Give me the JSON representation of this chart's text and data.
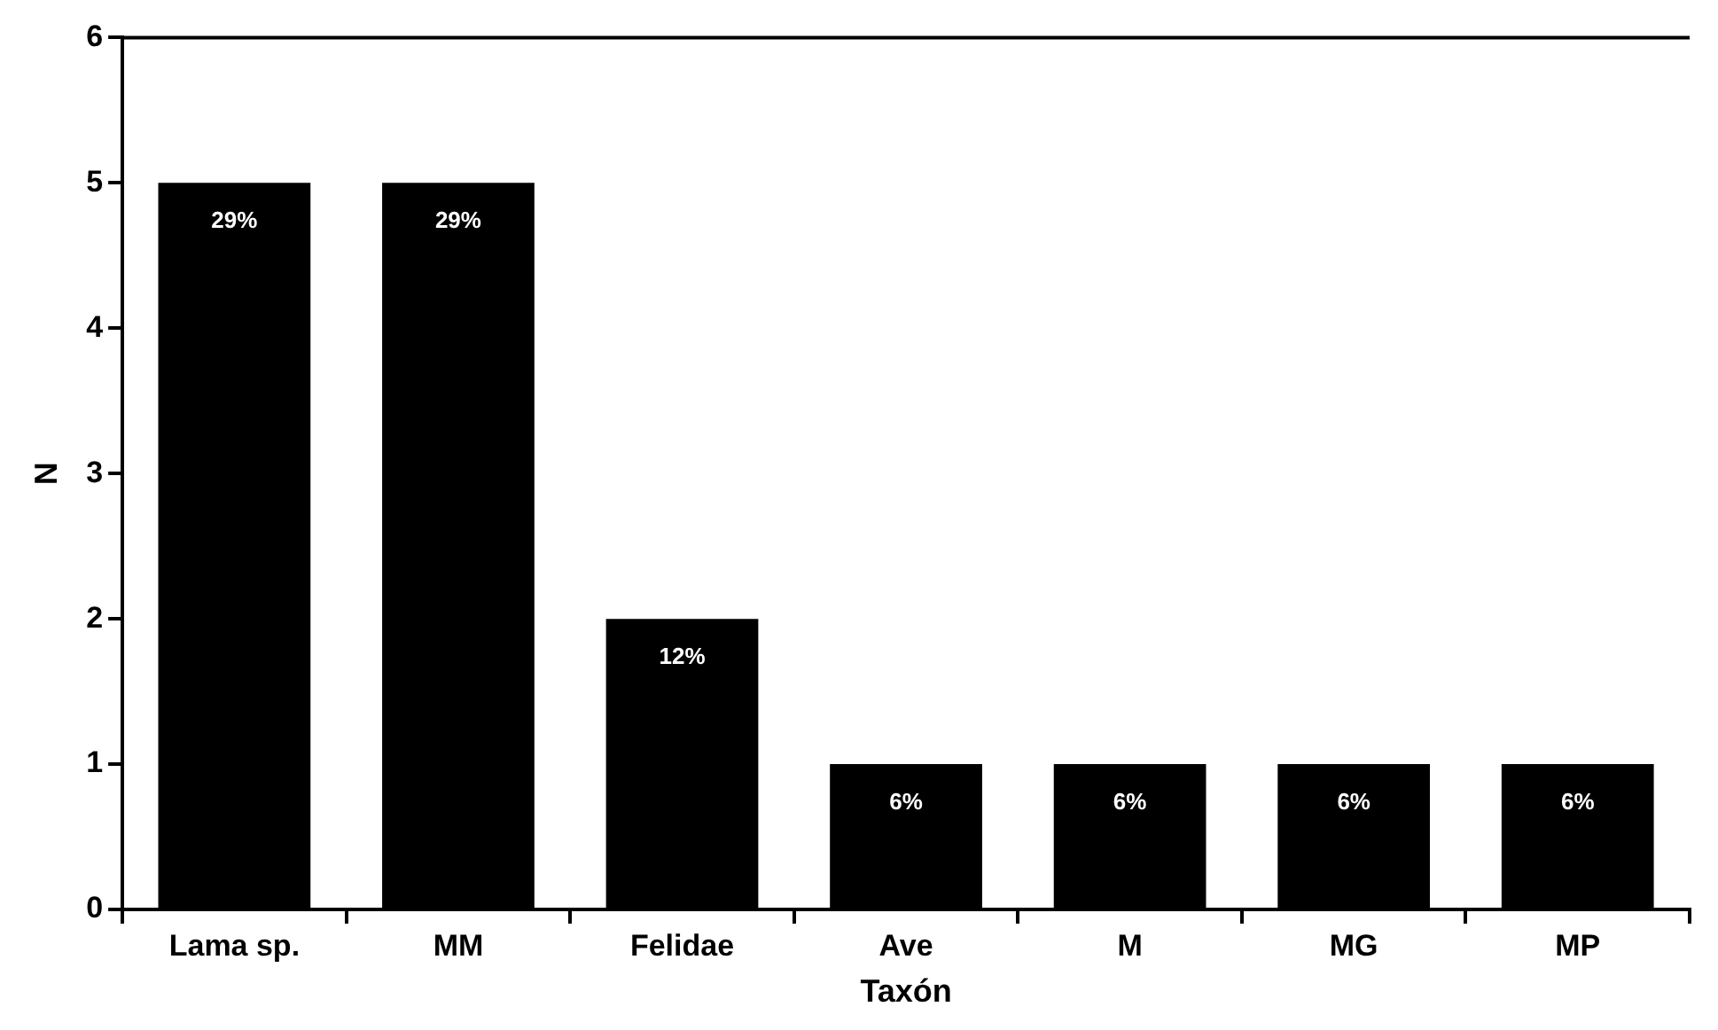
{
  "chart_data": {
    "type": "bar",
    "xlabel": "Taxón",
    "ylabel": "N",
    "categories": [
      "Lama sp.",
      "MM",
      "Felidae",
      "Ave",
      "M",
      "MG",
      "MP"
    ],
    "values": [
      5,
      5,
      2,
      1,
      1,
      1,
      1
    ],
    "annotations": [
      {
        "text": "29%",
        "x": "Lama sp.",
        "y": 5
      },
      {
        "text": "29%",
        "x": "MM",
        "y": 5
      },
      {
        "text": "12%",
        "x": "Felidae",
        "y": 2
      },
      {
        "text": "6%",
        "x": "Ave",
        "y": 1
      },
      {
        "text": "6%",
        "x": "M",
        "y": 1
      },
      {
        "text": "6%",
        "x": "MG",
        "y": 1
      },
      {
        "text": "6%",
        "x": "MP",
        "y": 1
      }
    ],
    "color": "#000000",
    "ylim": [
      0,
      6
    ],
    "yticks": [
      0,
      1,
      2,
      3,
      4,
      5,
      6
    ],
    "grid": false,
    "legend": false
  }
}
